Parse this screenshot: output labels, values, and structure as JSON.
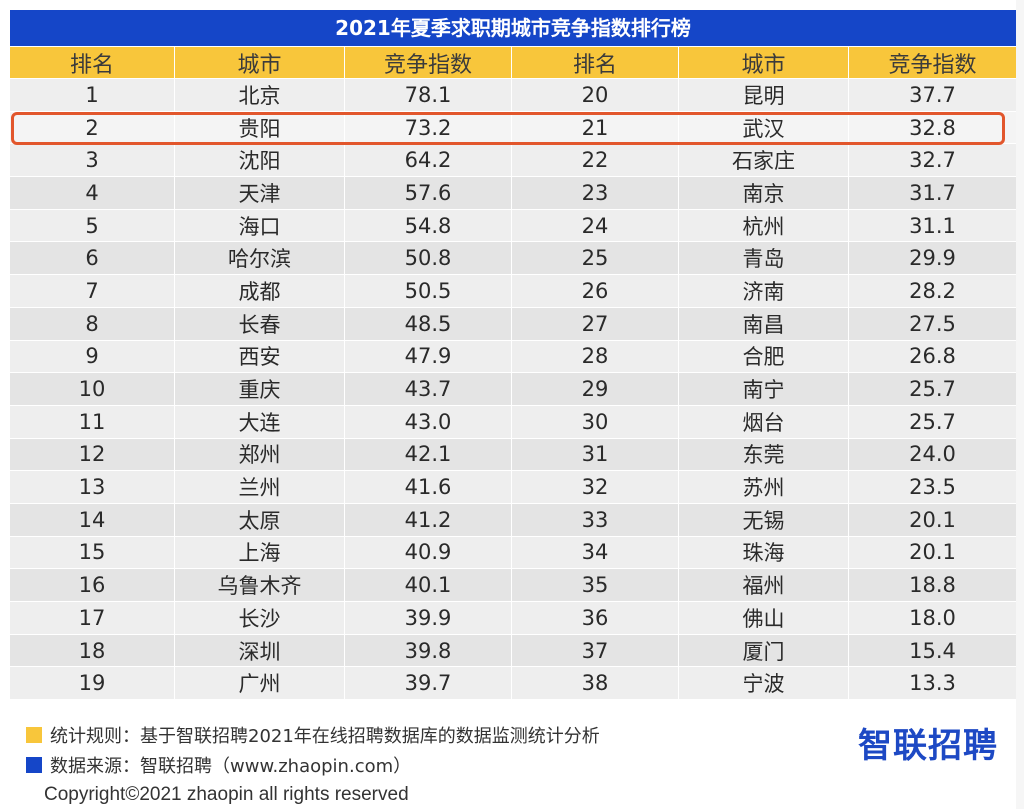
{
  "chart_data": {
    "type": "table",
    "title": "2021年夏季求职期城市竞争指数排行榜",
    "columns": [
      "排名",
      "城市",
      "竞争指数",
      "排名",
      "城市",
      "竞争指数"
    ],
    "rows": [
      [
        "1",
        "北京",
        "78.1",
        "20",
        "昆明",
        "37.7"
      ],
      [
        "2",
        "贵阳",
        "73.2",
        "21",
        "武汉",
        "32.8"
      ],
      [
        "3",
        "沈阳",
        "64.2",
        "22",
        "石家庄",
        "32.7"
      ],
      [
        "4",
        "天津",
        "57.6",
        "23",
        "南京",
        "31.7"
      ],
      [
        "5",
        "海口",
        "54.8",
        "24",
        "杭州",
        "31.1"
      ],
      [
        "6",
        "哈尔滨",
        "50.8",
        "25",
        "青岛",
        "29.9"
      ],
      [
        "7",
        "成都",
        "50.5",
        "26",
        "济南",
        "28.2"
      ],
      [
        "8",
        "长春",
        "48.5",
        "27",
        "南昌",
        "27.5"
      ],
      [
        "9",
        "西安",
        "47.9",
        "28",
        "合肥",
        "26.8"
      ],
      [
        "10",
        "重庆",
        "43.7",
        "29",
        "南宁",
        "25.7"
      ],
      [
        "11",
        "大连",
        "43.0",
        "30",
        "烟台",
        "25.7"
      ],
      [
        "12",
        "郑州",
        "42.1",
        "31",
        "东莞",
        "24.0"
      ],
      [
        "13",
        "兰州",
        "41.6",
        "32",
        "苏州",
        "23.5"
      ],
      [
        "14",
        "太原",
        "41.2",
        "33",
        "无锡",
        "20.1"
      ],
      [
        "15",
        "上海",
        "40.9",
        "34",
        "珠海",
        "20.1"
      ],
      [
        "16",
        "乌鲁木齐",
        "40.1",
        "35",
        "福州",
        "18.8"
      ],
      [
        "17",
        "长沙",
        "39.9",
        "36",
        "佛山",
        "18.0"
      ],
      [
        "18",
        "深圳",
        "39.8",
        "37",
        "厦门",
        "15.4"
      ],
      [
        "19",
        "广州",
        "39.7",
        "38",
        "宁波",
        "13.3"
      ]
    ],
    "highlighted_row": 1
  },
  "footer": {
    "note1": "统计规则：基于智联招聘2021年在线招聘数据库的数据监测统计分析",
    "note2": "数据来源：智联招聘（www.zhaopin.com）",
    "logo": "智联招聘",
    "copyright": "Copyright©2021 zhaopin all rights reserved"
  },
  "colors": {
    "title_bg": "#1546c8",
    "header_bg": "#f8c63b",
    "highlight_border": "#e2562c",
    "note1_square": "#f8c63b",
    "note2_square": "#1546c8",
    "logo": "#1d49c4"
  }
}
